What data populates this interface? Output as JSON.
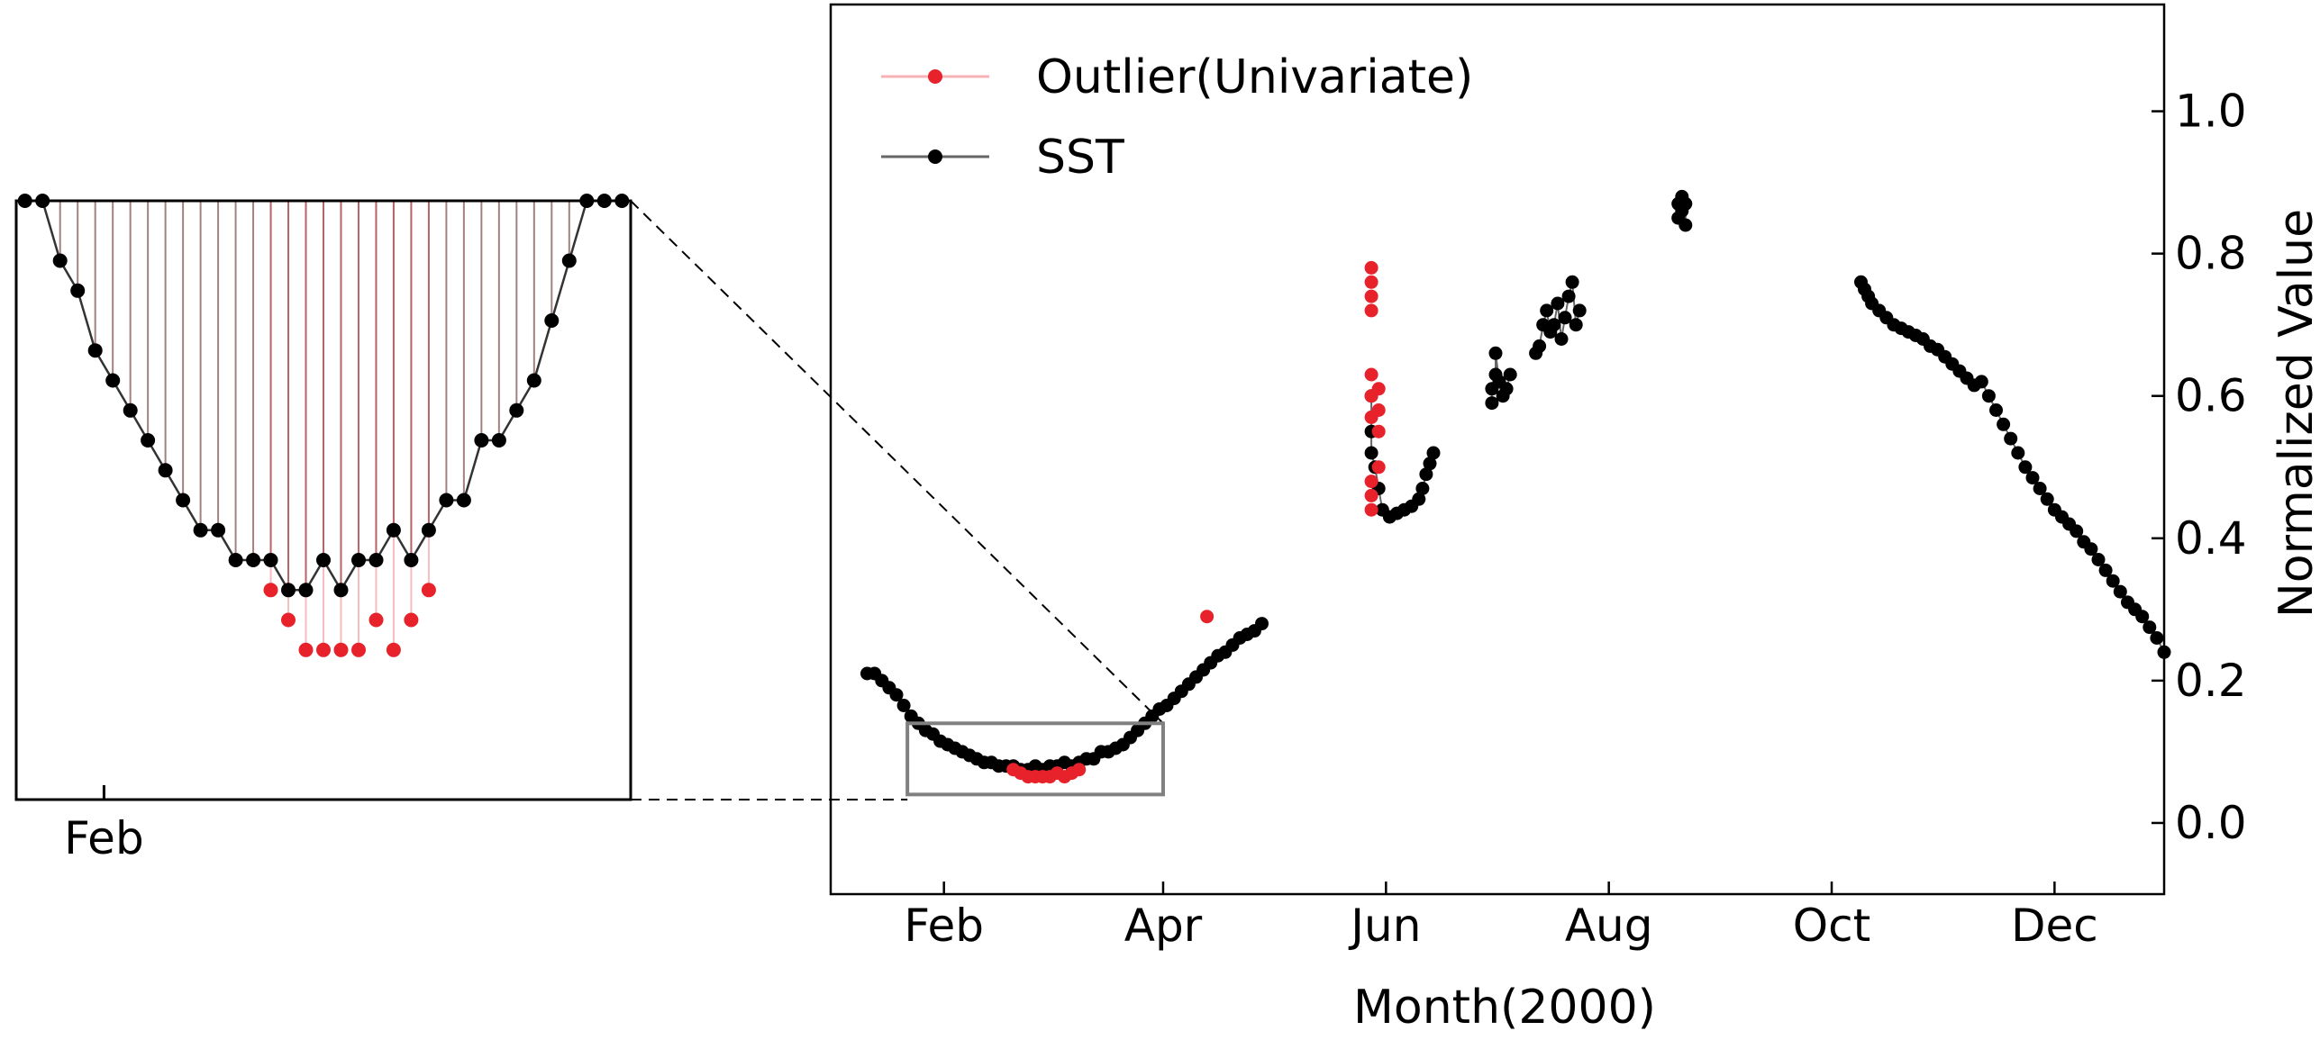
{
  "chart_data": [
    {
      "type": "scatter",
      "xlabel": "Month(2000)",
      "ylabel": "Normalized Value",
      "xlim": [
        "2000-01-01",
        "2000-12-31"
      ],
      "ylim": [
        -0.1,
        1.15
      ],
      "x_ticks": [
        "2000-02-01",
        "2000-04-01",
        "2000-06-01",
        "2000-08-01",
        "2000-10-01",
        "2000-12-01"
      ],
      "x_tick_labels": [
        "Feb",
        "Apr",
        "Jun",
        "Aug",
        "Oct",
        "Dec"
      ],
      "y_ticks": [
        0.0,
        0.2,
        0.4,
        0.6,
        0.8,
        1.0
      ],
      "y_tick_labels": [
        "0.0",
        "0.2",
        "0.4",
        "0.6",
        "0.8",
        "1.0"
      ],
      "y_axis_side": "right",
      "grid": false,
      "legend_position": "top-left",
      "series": [
        {
          "name": "Outlier(Univariate)",
          "color": "#e8222a",
          "points": [
            [
              "2000-02-20",
              0.075
            ],
            [
              "2000-02-22",
              0.07
            ],
            [
              "2000-02-24",
              0.065
            ],
            [
              "2000-02-26",
              0.065
            ],
            [
              "2000-02-28",
              0.065
            ],
            [
              "2000-03-01",
              0.065
            ],
            [
              "2000-03-03",
              0.07
            ],
            [
              "2000-03-05",
              0.065
            ],
            [
              "2000-03-07",
              0.07
            ],
            [
              "2000-03-09",
              0.075
            ],
            [
              "2000-04-13",
              0.29
            ],
            [
              "2000-05-28",
              0.78
            ],
            [
              "2000-05-28",
              0.76
            ],
            [
              "2000-05-28",
              0.74
            ],
            [
              "2000-05-28",
              0.72
            ],
            [
              "2000-05-28",
              0.63
            ],
            [
              "2000-05-28",
              0.6
            ],
            [
              "2000-05-28",
              0.57
            ],
            [
              "2000-05-28",
              0.48
            ],
            [
              "2000-05-28",
              0.46
            ],
            [
              "2000-05-28",
              0.44
            ],
            [
              "2000-05-30",
              0.61
            ],
            [
              "2000-05-30",
              0.58
            ],
            [
              "2000-05-30",
              0.55
            ],
            [
              "2000-05-30",
              0.5
            ]
          ]
        },
        {
          "name": "SST",
          "color": "#000000",
          "segments": [
            {
              "points": [
                [
                  "2000-01-11",
                  0.21
                ],
                [
                  "2000-01-13",
                  0.21
                ],
                [
                  "2000-01-15",
                  0.2
                ],
                [
                  "2000-01-17",
                  0.19
                ],
                [
                  "2000-01-19",
                  0.18
                ],
                [
                  "2000-01-21",
                  0.165
                ],
                [
                  "2000-01-23",
                  0.15
                ],
                [
                  "2000-01-25",
                  0.14
                ],
                [
                  "2000-01-27",
                  0.13
                ],
                [
                  "2000-01-29",
                  0.125
                ],
                [
                  "2000-01-31",
                  0.115
                ],
                [
                  "2000-02-02",
                  0.11
                ],
                [
                  "2000-02-04",
                  0.105
                ],
                [
                  "2000-02-06",
                  0.1
                ],
                [
                  "2000-02-08",
                  0.095
                ],
                [
                  "2000-02-10",
                  0.09
                ],
                [
                  "2000-02-12",
                  0.085
                ],
                [
                  "2000-02-14",
                  0.085
                ],
                [
                  "2000-02-16",
                  0.08
                ],
                [
                  "2000-02-18",
                  0.08
                ],
                [
                  "2000-02-20",
                  0.08
                ],
                [
                  "2000-02-22",
                  0.075
                ],
                [
                  "2000-02-24",
                  0.075
                ],
                [
                  "2000-02-26",
                  0.08
                ],
                [
                  "2000-02-28",
                  0.075
                ],
                [
                  "2000-03-01",
                  0.08
                ],
                [
                  "2000-03-03",
                  0.08
                ],
                [
                  "2000-03-05",
                  0.085
                ],
                [
                  "2000-03-07",
                  0.08
                ],
                [
                  "2000-03-09",
                  0.085
                ],
                [
                  "2000-03-11",
                  0.09
                ],
                [
                  "2000-03-13",
                  0.09
                ],
                [
                  "2000-03-15",
                  0.1
                ],
                [
                  "2000-03-17",
                  0.1
                ],
                [
                  "2000-03-19",
                  0.105
                ],
                [
                  "2000-03-21",
                  0.11
                ],
                [
                  "2000-03-23",
                  0.12
                ],
                [
                  "2000-03-25",
                  0.13
                ],
                [
                  "2000-03-27",
                  0.14
                ],
                [
                  "2000-03-29",
                  0.15
                ],
                [
                  "2000-03-31",
                  0.16
                ],
                [
                  "2000-04-02",
                  0.165
                ],
                [
                  "2000-04-04",
                  0.175
                ],
                [
                  "2000-04-06",
                  0.185
                ],
                [
                  "2000-04-08",
                  0.195
                ],
                [
                  "2000-04-10",
                  0.205
                ],
                [
                  "2000-04-12",
                  0.215
                ],
                [
                  "2000-04-14",
                  0.225
                ],
                [
                  "2000-04-16",
                  0.235
                ],
                [
                  "2000-04-18",
                  0.24
                ],
                [
                  "2000-04-20",
                  0.25
                ],
                [
                  "2000-04-22",
                  0.26
                ],
                [
                  "2000-04-24",
                  0.265
                ],
                [
                  "2000-04-26",
                  0.27
                ],
                [
                  "2000-04-28",
                  0.28
                ]
              ]
            },
            {
              "points": [
                [
                  "2000-05-28",
                  0.6
                ],
                [
                  "2000-05-28",
                  0.55
                ],
                [
                  "2000-05-28",
                  0.52
                ],
                [
                  "2000-05-29",
                  0.5
                ],
                [
                  "2000-05-30",
                  0.47
                ],
                [
                  "2000-05-31",
                  0.44
                ],
                [
                  "2000-06-02",
                  0.43
                ],
                [
                  "2000-06-04",
                  0.435
                ],
                [
                  "2000-06-06",
                  0.44
                ],
                [
                  "2000-06-08",
                  0.445
                ],
                [
                  "2000-06-10",
                  0.455
                ],
                [
                  "2000-06-11",
                  0.47
                ],
                [
                  "2000-06-12",
                  0.49
                ],
                [
                  "2000-06-13",
                  0.505
                ],
                [
                  "2000-06-14",
                  0.52
                ]
              ]
            },
            {
              "points": [
                [
                  "2000-06-30",
                  0.59
                ],
                [
                  "2000-06-30",
                  0.61
                ],
                [
                  "2000-07-01",
                  0.63
                ],
                [
                  "2000-07-01",
                  0.66
                ],
                [
                  "2000-07-02",
                  0.62
                ],
                [
                  "2000-07-03",
                  0.6
                ],
                [
                  "2000-07-04",
                  0.61
                ],
                [
                  "2000-07-05",
                  0.63
                ]
              ]
            },
            {
              "points": [
                [
                  "2000-07-12",
                  0.66
                ],
                [
                  "2000-07-13",
                  0.67
                ],
                [
                  "2000-07-14",
                  0.7
                ],
                [
                  "2000-07-15",
                  0.72
                ],
                [
                  "2000-07-16",
                  0.69
                ],
                [
                  "2000-07-17",
                  0.7
                ],
                [
                  "2000-07-18",
                  0.73
                ],
                [
                  "2000-07-19",
                  0.68
                ],
                [
                  "2000-07-20",
                  0.71
                ],
                [
                  "2000-07-21",
                  0.74
                ],
                [
                  "2000-07-22",
                  0.76
                ],
                [
                  "2000-07-23",
                  0.7
                ],
                [
                  "2000-07-24",
                  0.72
                ]
              ]
            },
            {
              "points": [
                [
                  "2000-08-20",
                  0.85
                ],
                [
                  "2000-08-20",
                  0.87
                ],
                [
                  "2000-08-21",
                  0.86
                ],
                [
                  "2000-08-21",
                  0.88
                ],
                [
                  "2000-08-22",
                  0.84
                ],
                [
                  "2000-08-22",
                  0.87
                ]
              ]
            },
            {
              "points": [
                [
                  "2000-10-09",
                  0.76
                ],
                [
                  "2000-10-10",
                  0.75
                ],
                [
                  "2000-10-11",
                  0.74
                ],
                [
                  "2000-10-12",
                  0.73
                ],
                [
                  "2000-10-14",
                  0.72
                ],
                [
                  "2000-10-16",
                  0.71
                ],
                [
                  "2000-10-18",
                  0.7
                ],
                [
                  "2000-10-20",
                  0.695
                ],
                [
                  "2000-10-22",
                  0.69
                ],
                [
                  "2000-10-24",
                  0.685
                ],
                [
                  "2000-10-26",
                  0.68
                ],
                [
                  "2000-10-28",
                  0.67
                ],
                [
                  "2000-10-30",
                  0.665
                ],
                [
                  "2000-11-01",
                  0.655
                ],
                [
                  "2000-11-03",
                  0.645
                ],
                [
                  "2000-11-05",
                  0.635
                ],
                [
                  "2000-11-07",
                  0.625
                ],
                [
                  "2000-11-09",
                  0.615
                ],
                [
                  "2000-11-11",
                  0.62
                ],
                [
                  "2000-11-13",
                  0.6
                ],
                [
                  "2000-11-15",
                  0.58
                ],
                [
                  "2000-11-17",
                  0.56
                ],
                [
                  "2000-11-19",
                  0.54
                ],
                [
                  "2000-11-21",
                  0.52
                ],
                [
                  "2000-11-23",
                  0.5
                ],
                [
                  "2000-11-25",
                  0.485
                ],
                [
                  "2000-11-27",
                  0.47
                ],
                [
                  "2000-11-29",
                  0.455
                ],
                [
                  "2000-12-01",
                  0.44
                ],
                [
                  "2000-12-03",
                  0.43
                ],
                [
                  "2000-12-05",
                  0.42
                ],
                [
                  "2000-12-07",
                  0.41
                ],
                [
                  "2000-12-09",
                  0.395
                ],
                [
                  "2000-12-11",
                  0.385
                ],
                [
                  "2000-12-13",
                  0.37
                ],
                [
                  "2000-12-15",
                  0.355
                ],
                [
                  "2000-12-17",
                  0.34
                ],
                [
                  "2000-12-19",
                  0.325
                ],
                [
                  "2000-12-21",
                  0.31
                ],
                [
                  "2000-12-23",
                  0.3
                ],
                [
                  "2000-12-25",
                  0.29
                ],
                [
                  "2000-12-27",
                  0.275
                ],
                [
                  "2000-12-29",
                  0.26
                ],
                [
                  "2000-12-31",
                  0.24
                ]
              ]
            }
          ]
        }
      ],
      "zoom_box": {
        "x_range": [
          "2000-01-22",
          "2000-04-01"
        ],
        "y_range": [
          0.04,
          0.14
        ]
      }
    },
    {
      "type": "scatter",
      "x_ticks": [
        "2000-02-01"
      ],
      "x_tick_labels": [
        "Feb"
      ],
      "xlim": [
        "2000-01-22",
        "2000-04-01"
      ],
      "ylim": [
        0.04,
        0.14
      ],
      "grid": false
    }
  ]
}
